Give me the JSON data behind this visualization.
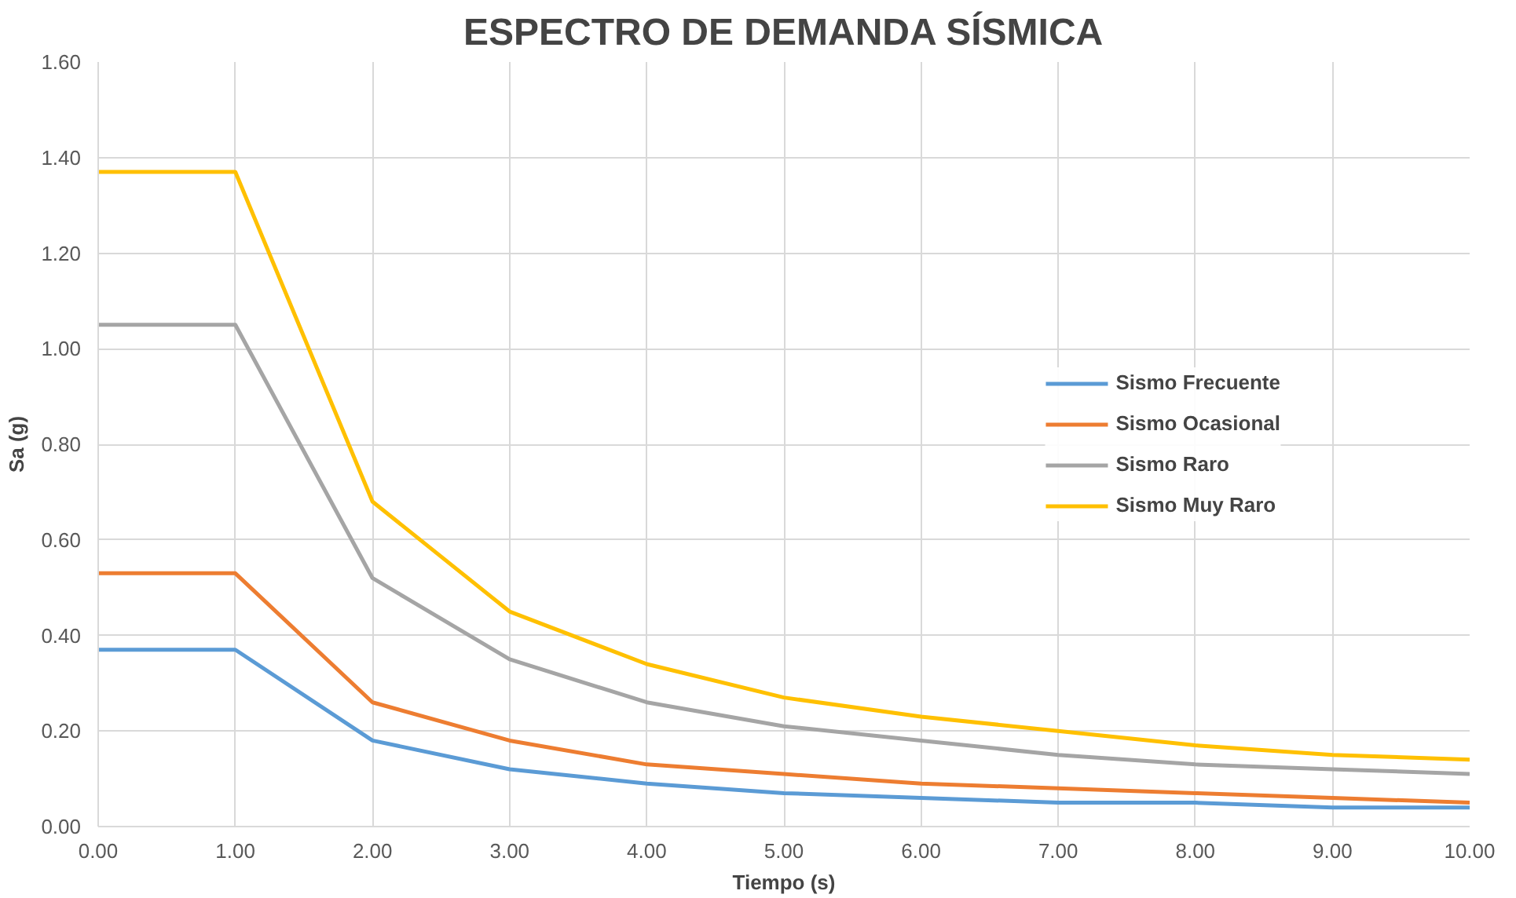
{
  "chart_data": {
    "type": "line",
    "title": "ESPECTRO DE DEMANDA SÍSMICA",
    "xlabel": "Tiempo (s)",
    "ylabel": "Sa (g)",
    "x": [
      0,
      1,
      2,
      3,
      4,
      5,
      6,
      7,
      8,
      9,
      10
    ],
    "series": [
      {
        "name": "Sismo Frecuente",
        "color": "#5b9bd5",
        "values": [
          0.37,
          0.37,
          0.18,
          0.12,
          0.09,
          0.07,
          0.06,
          0.05,
          0.05,
          0.04,
          0.04
        ]
      },
      {
        "name": "Sismo Ocasional",
        "color": "#ed7d31",
        "values": [
          0.53,
          0.53,
          0.26,
          0.18,
          0.13,
          0.11,
          0.09,
          0.08,
          0.07,
          0.06,
          0.05
        ]
      },
      {
        "name": "Sismo Raro",
        "color": "#a5a5a5",
        "values": [
          1.05,
          1.05,
          0.52,
          0.35,
          0.26,
          0.21,
          0.18,
          0.15,
          0.13,
          0.12,
          0.11
        ]
      },
      {
        "name": "Sismo Muy Raro",
        "color": "#ffc000",
        "values": [
          1.37,
          1.37,
          0.68,
          0.45,
          0.34,
          0.27,
          0.23,
          0.2,
          0.17,
          0.15,
          0.14
        ]
      }
    ],
    "xlim": [
      0,
      10
    ],
    "ylim": [
      0,
      1.6
    ],
    "xticks": [
      {
        "value": 0,
        "label": "0.00"
      },
      {
        "value": 1,
        "label": "1.00"
      },
      {
        "value": 2,
        "label": "2.00"
      },
      {
        "value": 3,
        "label": "3.00"
      },
      {
        "value": 4,
        "label": "4.00"
      },
      {
        "value": 5,
        "label": "5.00"
      },
      {
        "value": 6,
        "label": "6.00"
      },
      {
        "value": 7,
        "label": "7.00"
      },
      {
        "value": 8,
        "label": "8.00"
      },
      {
        "value": 9,
        "label": "9.00"
      },
      {
        "value": 10,
        "label": "10.00"
      }
    ],
    "yticks": [
      {
        "value": 0,
        "label": "0.00"
      },
      {
        "value": 0.2,
        "label": "0.20"
      },
      {
        "value": 0.4,
        "label": "0.40"
      },
      {
        "value": 0.6,
        "label": "0.60"
      },
      {
        "value": 0.8,
        "label": "0.80"
      },
      {
        "value": 1.0,
        "label": "1.00"
      },
      {
        "value": 1.2,
        "label": "1.20"
      },
      {
        "value": 1.4,
        "label": "1.40"
      },
      {
        "value": 1.6,
        "label": "1.60"
      }
    ],
    "grid": true,
    "legend": "right"
  }
}
